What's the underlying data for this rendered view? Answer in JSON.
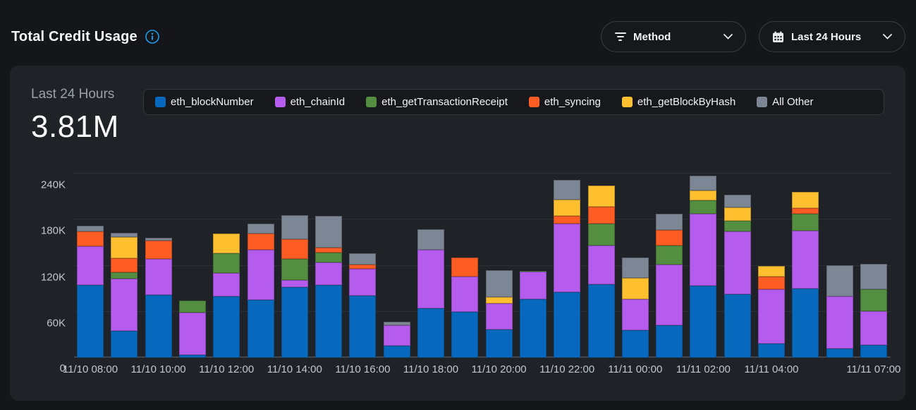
{
  "header": {
    "title": "Total Credit Usage",
    "info_icon": "info-circle",
    "filters": [
      {
        "label": "Method",
        "icon": "filter-icon"
      },
      {
        "label": "Last 24 Hours",
        "icon": "calendar-icon"
      }
    ]
  },
  "card": {
    "period_label": "Last 24 Hours",
    "total_value": "3.81M"
  },
  "colors": {
    "page_bg": "#15161a",
    "card_bg": "#1f2227",
    "legend_bg": "#17181c",
    "border": "#3a4047",
    "gridline": "#2d3136",
    "axis_text": "#c2c7ce",
    "muted_text": "#9aa1a9",
    "info_blue": "#1d9ce5"
  },
  "chart_data": {
    "type": "bar",
    "stacked": true,
    "title": "Total Credit Usage",
    "unit": "credits",
    "values_unit": "thousands",
    "x": [
      "11/10 08:00",
      "11/10 09:00",
      "11/10 10:00",
      "11/10 11:00",
      "11/10 12:00",
      "11/10 13:00",
      "11/10 14:00",
      "11/10 15:00",
      "11/10 16:00",
      "11/10 17:00",
      "11/10 18:00",
      "11/10 19:00",
      "11/10 20:00",
      "11/10 21:00",
      "11/10 22:00",
      "11/10 23:00",
      "11/11 00:00",
      "11/11 01:00",
      "11/11 02:00",
      "11/11 03:00",
      "11/11 04:00",
      "11/11 05:00",
      "11/11 06:00",
      "11/11 07:00"
    ],
    "x_tick_labels": [
      "11/10 08:00",
      "11/10 10:00",
      "11/10 12:00",
      "11/10 14:00",
      "11/10 16:00",
      "11/10 18:00",
      "11/10 20:00",
      "11/10 22:00",
      "11/11 00:00",
      "11/11 02:00",
      "11/11 04:00",
      "11/11 07:00"
    ],
    "x_tick_indices": [
      0,
      2,
      4,
      6,
      8,
      10,
      12,
      14,
      16,
      18,
      20,
      23
    ],
    "y_ticks": [
      "0",
      "60K",
      "120K",
      "180K",
      "240K"
    ],
    "y_tick_values": [
      0,
      60,
      120,
      180,
      240
    ],
    "ylim": [
      0,
      252
    ],
    "legend_position": "top",
    "grid": true,
    "series": [
      {
        "name": "eth_blockNumber",
        "color": "#0669bd",
        "values": [
          95,
          35,
          82,
          4,
          80,
          75,
          92,
          95,
          81,
          16,
          64,
          60,
          37,
          76,
          86,
          96,
          36,
          42,
          94,
          83,
          18,
          90,
          12,
          17
        ]
      },
      {
        "name": "eth_chainId",
        "color": "#b55cee",
        "values": [
          50,
          68,
          47,
          55,
          30,
          66,
          9,
          29,
          35,
          26,
          77,
          46,
          34,
          36,
          89,
          50,
          40,
          79,
          94,
          82,
          71,
          76,
          68,
          44
        ]
      },
      {
        "name": "eth_getTransactionReceipt",
        "color": "#538e41",
        "values": [
          0,
          8,
          0,
          16,
          26,
          0,
          28,
          13,
          0,
          0,
          0,
          0,
          0,
          1,
          0,
          29,
          0,
          25,
          17,
          13,
          0,
          22,
          0,
          28
        ]
      },
      {
        "name": "eth_syncing",
        "color": "#fd5c22",
        "values": [
          20,
          19,
          24,
          0,
          0,
          21,
          26,
          7,
          5,
          0,
          0,
          25,
          0,
          0,
          10,
          22,
          0,
          20,
          0,
          0,
          17,
          7,
          0,
          0
        ]
      },
      {
        "name": "eth_getBlockByHash",
        "color": "#fec02f",
        "values": [
          0,
          27,
          0,
          0,
          26,
          0,
          0,
          0,
          0,
          0,
          0,
          0,
          8,
          0,
          21,
          27,
          28,
          0,
          13,
          18,
          14,
          21,
          0,
          0
        ]
      },
      {
        "name": "All Other",
        "color": "#7d8695",
        "values": [
          7,
          6,
          3,
          0,
          0,
          13,
          31,
          41,
          15,
          5,
          26,
          0,
          35,
          0,
          26,
          0,
          27,
          22,
          19,
          16,
          0,
          0,
          41,
          33
        ]
      }
    ]
  }
}
